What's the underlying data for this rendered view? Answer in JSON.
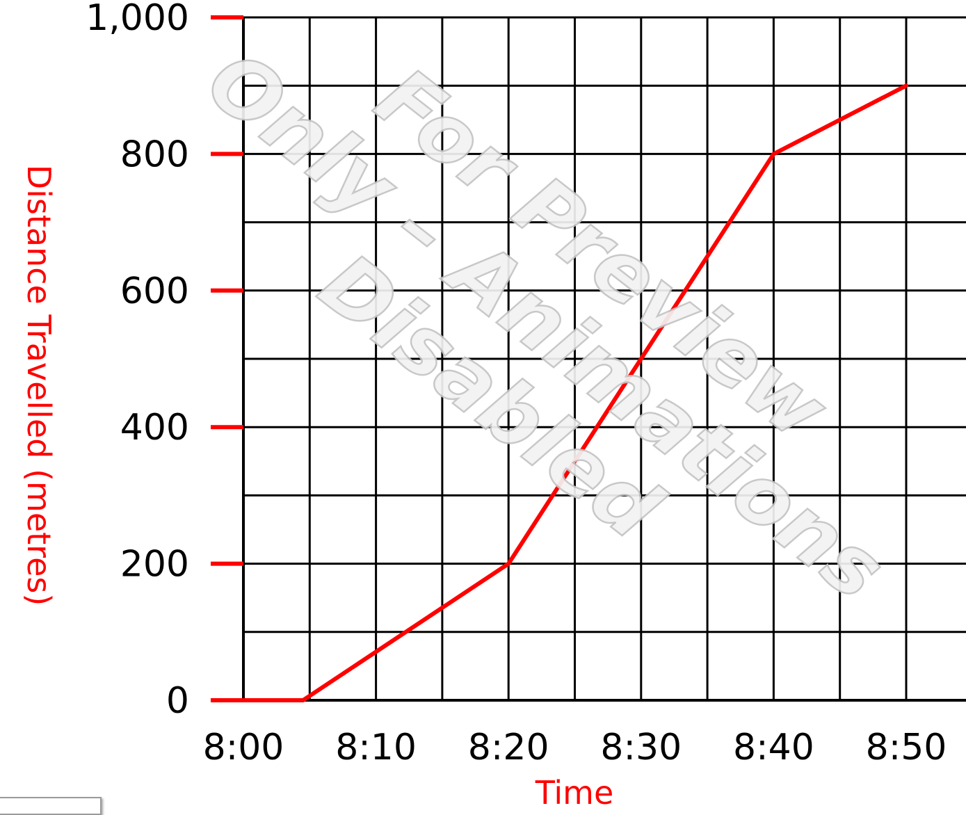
{
  "chart_data": {
    "type": "line",
    "xlabel": "Time",
    "ylabel": "Distance Travelled (metres)",
    "x_tick_labels": [
      "8:00",
      "8:10",
      "8:20",
      "8:30",
      "8:40",
      "8:50"
    ],
    "y_tick_labels": [
      "0",
      "200",
      "400",
      "600",
      "800",
      "1,000"
    ],
    "y_ticks": [
      0,
      200,
      400,
      600,
      800,
      1000
    ],
    "xlim_minutes_past_8": [
      0,
      50
    ],
    "ylim": [
      0,
      1000
    ],
    "grid": true,
    "series": [
      {
        "color": "#ff0000",
        "points": [
          {
            "x": "8:00",
            "y": 0
          },
          {
            "x": "8:04.5",
            "y": 0
          },
          {
            "x": "8:20",
            "y": 200
          },
          {
            "x": "8:40",
            "y": 800
          },
          {
            "x": "8:50",
            "y": 900
          }
        ]
      }
    ]
  },
  "watermark": {
    "lines": [
      "For Preview",
      "Only – Animations",
      "Disabled"
    ]
  },
  "colors": {
    "axis_ticks": "#ff0000",
    "line": "#ff0000",
    "grid": "#000000",
    "axis_titles": "#ff0000"
  }
}
